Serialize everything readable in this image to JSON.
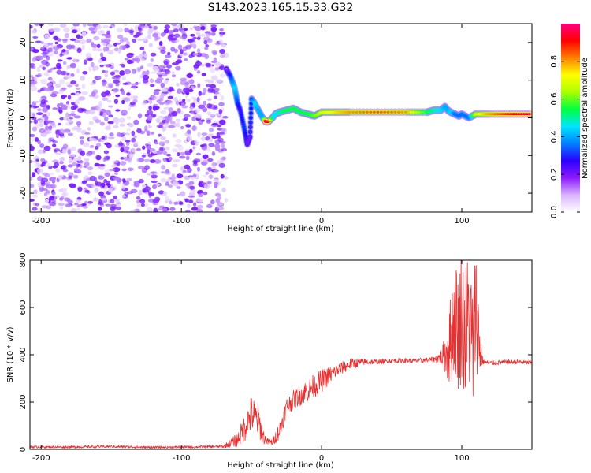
{
  "title": "S143.2023.165.15.33.G32",
  "chart_data": [
    {
      "type": "heatmap",
      "title": "S143.2023.165.15.33.G32",
      "xlabel": "Height of straight line (km)",
      "ylabel": "Frequency (Hz)",
      "xlim": [
        -208,
        150
      ],
      "ylim": [
        -25,
        25
      ],
      "x_ticks": [
        -200,
        -100,
        0,
        100
      ],
      "y_ticks": [
        -20,
        -10,
        0,
        10,
        20
      ],
      "colorbar": {
        "label": "Normalized spectral amplitude",
        "range": [
          0,
          1
        ],
        "ticks": [
          0.0,
          0.2,
          0.4,
          0.6,
          0.8
        ],
        "colormap": [
          "#ffffff",
          "#d9b3ff",
          "#8c1aff",
          "#2b00ff",
          "#0080ff",
          "#00e5ff",
          "#00ff40",
          "#aaff00",
          "#ffff00",
          "#ff8000",
          "#ff0000",
          "#ff0080"
        ]
      },
      "noise_region": {
        "x_range": [
          -208,
          -68
        ],
        "f_range": [
          -25,
          25
        ],
        "amplitude": 0.1
      },
      "ridge": {
        "x": [
          -68,
          -65,
          -62,
          -60,
          -58,
          -55,
          -53,
          -51,
          -50,
          -48,
          -45,
          -42,
          -40,
          -38,
          -35,
          -33,
          -30,
          -25,
          -20,
          -15,
          -10,
          -5,
          0,
          10,
          20,
          40,
          60,
          75,
          80,
          85,
          88,
          90,
          92,
          95,
          98,
          100,
          105,
          110,
          120,
          135,
          150
        ],
        "f": [
          13,
          11,
          8,
          4,
          2,
          -3,
          -7,
          -5,
          5,
          4,
          2,
          0,
          -1,
          -1,
          0,
          1,
          1.5,
          2,
          2.5,
          1.5,
          1,
          0.5,
          1.5,
          1.5,
          1.5,
          1.5,
          1.5,
          1.5,
          2,
          2,
          3,
          2,
          1.5,
          1,
          0.5,
          1,
          0,
          1,
          1,
          1,
          1
        ],
        "amplitude": [
          0.15,
          0.3,
          0.45,
          0.3,
          0.25,
          0.3,
          0.2,
          0.2,
          0.3,
          0.45,
          0.4,
          0.4,
          0.95,
          0.95,
          0.5,
          0.45,
          0.5,
          0.55,
          0.55,
          0.55,
          0.55,
          0.6,
          0.7,
          0.75,
          0.8,
          0.85,
          0.8,
          0.55,
          0.5,
          0.45,
          0.4,
          0.4,
          0.45,
          0.35,
          0.35,
          0.35,
          0.35,
          0.7,
          0.8,
          0.9,
          1.0
        ]
      }
    },
    {
      "type": "line",
      "xlabel": "Height of straight line (km)",
      "ylabel": "SNR (10 * v/v)",
      "xlim": [
        -208,
        150
      ],
      "ylim": [
        0,
        800
      ],
      "x_ticks": [
        -200,
        -100,
        0,
        100
      ],
      "y_ticks": [
        0,
        200,
        400,
        600,
        800
      ],
      "series": [
        {
          "color": "#e83030",
          "x": [
            -208,
            -180,
            -150,
            -120,
            -90,
            -70,
            -60,
            -55,
            -50,
            -45,
            -42,
            -40,
            -38,
            -35,
            -30,
            -25,
            -20,
            -15,
            -10,
            -5,
            0,
            5,
            10,
            20,
            30,
            40,
            50,
            60,
            70,
            80,
            85,
            88,
            90,
            92,
            95,
            98,
            100,
            102,
            105,
            108,
            110,
            112,
            115,
            120,
            130,
            140,
            150
          ],
          "y": [
            10,
            10,
            12,
            8,
            10,
            12,
            40,
            90,
            150,
            120,
            60,
            40,
            30,
            30,
            80,
            180,
            210,
            230,
            250,
            270,
            290,
            310,
            330,
            360,
            370,
            370,
            375,
            375,
            375,
            380,
            390,
            400,
            420,
            460,
            560,
            500,
            600,
            480,
            560,
            420,
            620,
            460,
            370,
            365,
            368,
            370,
            365
          ],
          "noise": [
            5,
            5,
            5,
            5,
            5,
            6,
            30,
            60,
            80,
            70,
            40,
            20,
            15,
            15,
            40,
            40,
            40,
            45,
            50,
            50,
            50,
            40,
            30,
            25,
            15,
            10,
            10,
            10,
            10,
            12,
            30,
            80,
            150,
            200,
            250,
            280,
            300,
            300,
            300,
            300,
            250,
            200,
            10,
            10,
            10,
            10,
            10
          ]
        }
      ]
    }
  ]
}
